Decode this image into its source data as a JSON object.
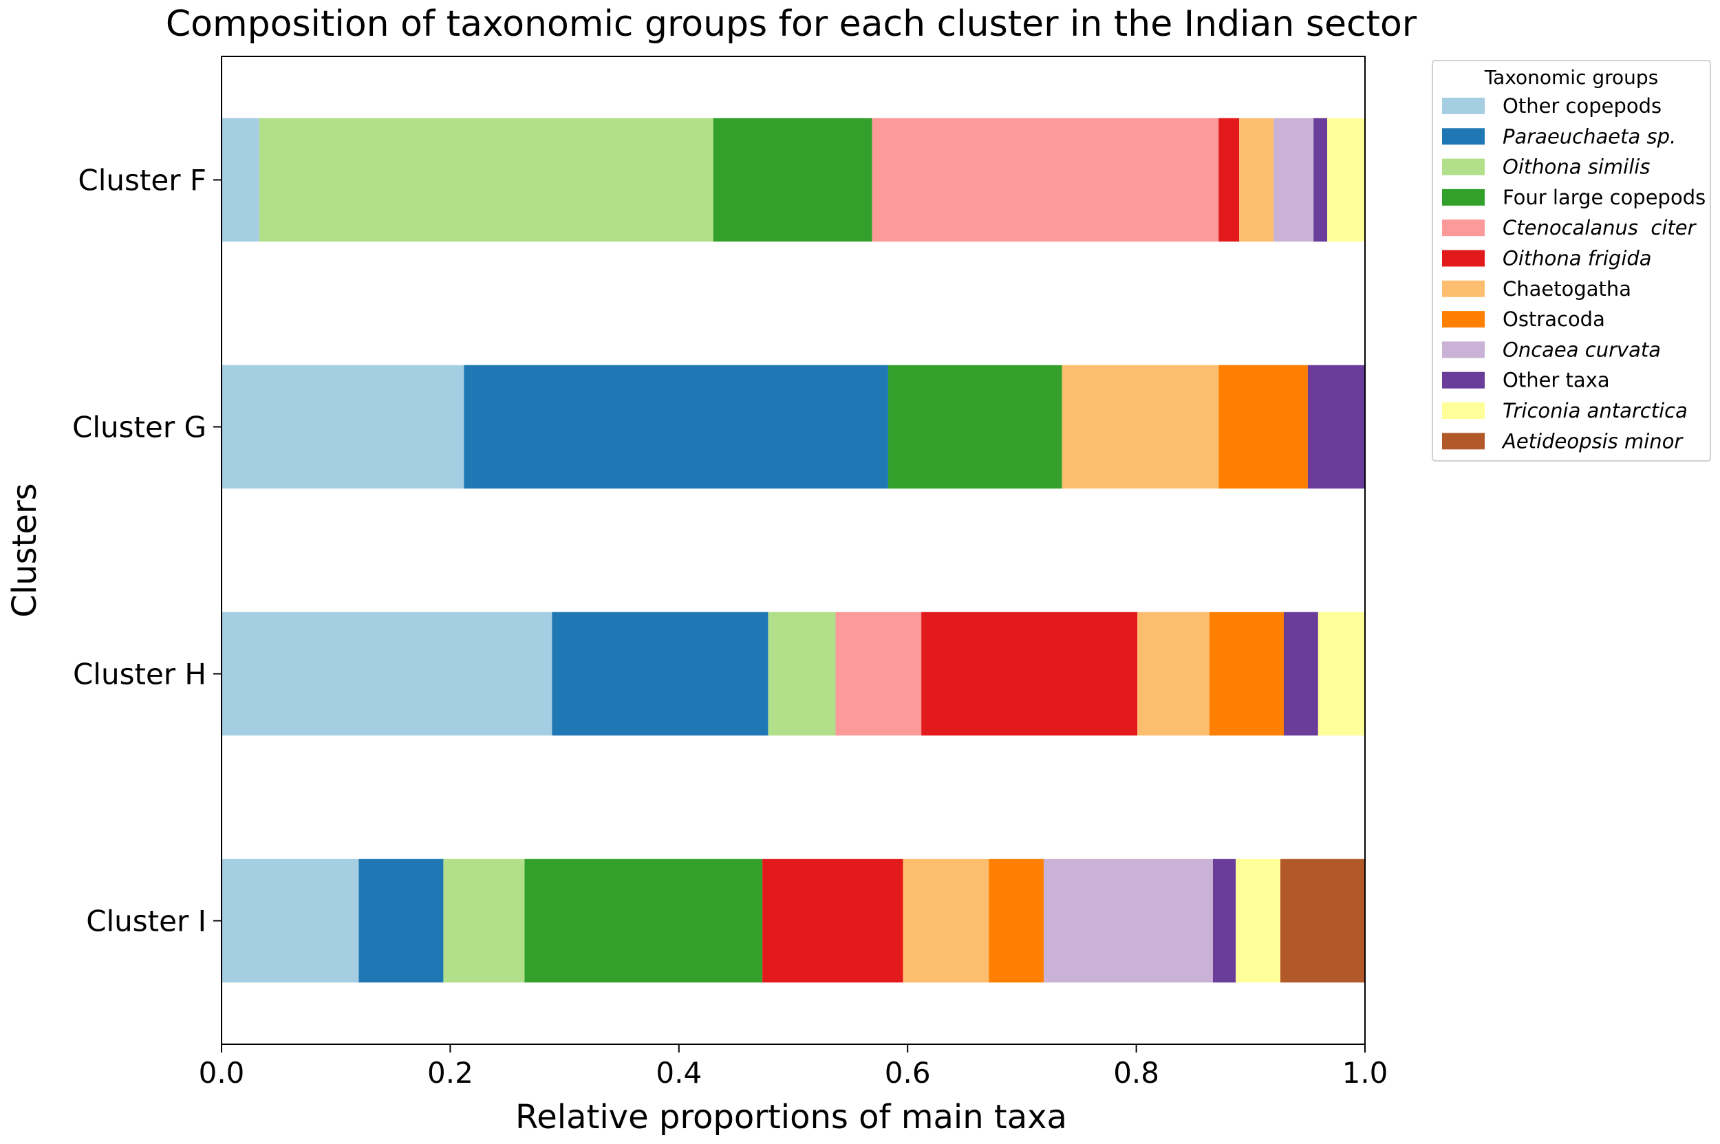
{
  "chart_data": {
    "type": "bar",
    "orientation": "horizontal",
    "stacked": true,
    "title": "Composition of taxonomic groups for each cluster in the Indian sector",
    "xlabel": "Relative proportions of main taxa",
    "ylabel": "Clusters",
    "xlim": [
      0,
      1
    ],
    "xticks": [
      "0.0",
      "0.2",
      "0.4",
      "0.6",
      "0.8",
      "1.0"
    ],
    "categories": [
      "Cluster F",
      "Cluster G",
      "Cluster H",
      "Cluster I"
    ],
    "legend_title": "Taxonomic groups",
    "legend_position": "upper right, outside plot",
    "series": [
      {
        "name": "Other copepods",
        "italic": false,
        "color": "#a6cee3",
        "values": [
          0.033,
          0.212,
          0.289,
          0.12
        ]
      },
      {
        "name": "Paraeuchaeta sp.",
        "italic": true,
        "color": "#1f78b4",
        "values": [
          0.0,
          0.371,
          0.189,
          0.074
        ]
      },
      {
        "name": "Oithona similis",
        "italic": true,
        "color": "#b2df8a",
        "values": [
          0.397,
          0.0,
          0.059,
          0.071
        ]
      },
      {
        "name": "Four large copepods",
        "italic": false,
        "color": "#33a02c",
        "values": [
          0.139,
          0.152,
          0.0,
          0.208
        ]
      },
      {
        "name": "Ctenocalanus  citer",
        "italic": true,
        "color": "#fb9a99",
        "values": [
          0.303,
          0.0,
          0.075,
          0.0
        ]
      },
      {
        "name": "Oithona frigida",
        "italic": true,
        "color": "#e31a1c",
        "values": [
          0.018,
          0.0,
          0.189,
          0.123
        ]
      },
      {
        "name": "Chaetogatha",
        "italic": false,
        "color": "#fdbf6f",
        "values": [
          0.03,
          0.137,
          0.063,
          0.075
        ]
      },
      {
        "name": "Ostracoda",
        "italic": false,
        "color": "#ff7f00",
        "values": [
          0.0,
          0.078,
          0.065,
          0.048
        ]
      },
      {
        "name": "Oncaea curvata",
        "italic": true,
        "color": "#cab2d6",
        "values": [
          0.035,
          0.0,
          0.0,
          0.148
        ]
      },
      {
        "name": "Other taxa",
        "italic": false,
        "color": "#6a3d9a",
        "values": [
          0.012,
          0.05,
          0.03,
          0.02
        ]
      },
      {
        "name": "Triconia antarctica",
        "italic": true,
        "color": "#ffff99",
        "values": [
          0.033,
          0.0,
          0.041,
          0.039
        ]
      },
      {
        "name": "Aetideopsis minor",
        "italic": true,
        "color": "#b15928",
        "values": [
          0.0,
          0.0,
          0.0,
          0.074
        ]
      }
    ]
  }
}
